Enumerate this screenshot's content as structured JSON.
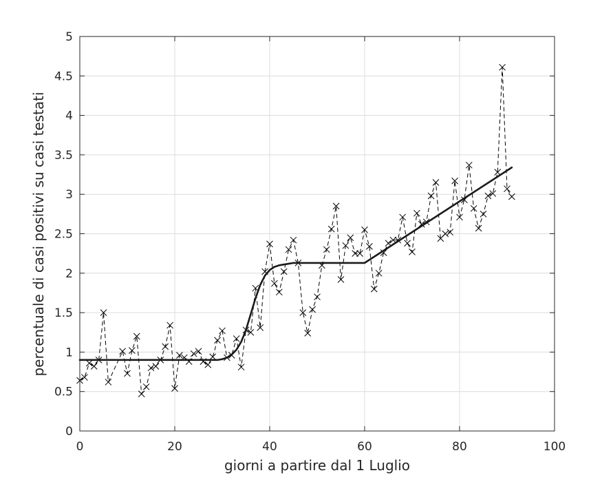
{
  "chart_data": {
    "type": "line",
    "title": "",
    "xlabel": "giorni a partire dal 1 Luglio",
    "ylabel": "percentuale di casi positivi su casi testati",
    "xlim": [
      0,
      100
    ],
    "ylim": [
      0,
      5
    ],
    "xticks": [
      "0",
      "20",
      "40",
      "60",
      "80",
      "100"
    ],
    "yticks": [
      "0",
      "0.5",
      "1",
      "1.5",
      "2",
      "2.5",
      "3",
      "3.5",
      "4",
      "4.5",
      "5"
    ],
    "grid": true,
    "legend": "none",
    "series": [
      {
        "style": "dashed line with x markers",
        "color": "#000000",
        "x": [
          0,
          1,
          2,
          3,
          4,
          5,
          6,
          9,
          10,
          11,
          12,
          13,
          14,
          15,
          16,
          17,
          18,
          19,
          20,
          21,
          22,
          23,
          24,
          25,
          26,
          27,
          28,
          29,
          30,
          31,
          32,
          33,
          34,
          35,
          36,
          37,
          38,
          39,
          40,
          41,
          42,
          43,
          44,
          45,
          46,
          47,
          48,
          49,
          50,
          51,
          52,
          53,
          54,
          55,
          56,
          57,
          58,
          59,
          60,
          61,
          62,
          63,
          64,
          65,
          66,
          67,
          68,
          69,
          70,
          71,
          72,
          73,
          74,
          75,
          76,
          77,
          78,
          79,
          80,
          81,
          82,
          83,
          84,
          85,
          86,
          87,
          88,
          89,
          90,
          91
        ],
        "y": [
          0.64,
          0.68,
          0.86,
          0.82,
          0.9,
          1.5,
          0.62,
          1.01,
          0.73,
          1.02,
          1.2,
          0.47,
          0.56,
          0.8,
          0.82,
          0.9,
          1.07,
          1.34,
          0.54,
          0.96,
          0.93,
          0.88,
          0.98,
          1.01,
          0.88,
          0.84,
          0.94,
          1.15,
          1.27,
          0.93,
          0.96,
          1.17,
          0.81,
          1.28,
          1.25,
          1.81,
          1.31,
          2.02,
          2.37,
          1.87,
          1.76,
          2.02,
          2.3,
          2.42,
          2.13,
          1.5,
          1.24,
          1.54,
          1.7,
          2.1,
          2.3,
          2.56,
          2.85,
          1.92,
          2.35,
          2.45,
          2.25,
          2.25,
          2.55,
          2.34,
          1.8,
          2.0,
          2.26,
          2.38,
          2.42,
          2.42,
          2.71,
          2.38,
          2.27,
          2.76,
          2.62,
          2.65,
          2.98,
          3.15,
          2.44,
          2.5,
          2.52,
          3.17,
          2.71,
          2.93,
          3.37,
          2.82,
          2.57,
          2.75,
          2.98,
          3.01,
          3.28,
          4.61,
          3.07,
          2.97
        ]
      },
      {
        "style": "solid fitted curve",
        "color": "#1a1a1a",
        "x": [
          0,
          29,
          30,
          31,
          32,
          33,
          34,
          35,
          36,
          37,
          38,
          39,
          40,
          41,
          42,
          43,
          44,
          45,
          46,
          50,
          60,
          91
        ],
        "y": [
          0.9,
          0.9,
          0.91,
          0.93,
          0.97,
          1.03,
          1.13,
          1.28,
          1.48,
          1.68,
          1.85,
          1.97,
          2.04,
          2.08,
          2.1,
          2.11,
          2.12,
          2.13,
          2.13,
          2.13,
          2.13,
          3.34
        ]
      }
    ]
  }
}
